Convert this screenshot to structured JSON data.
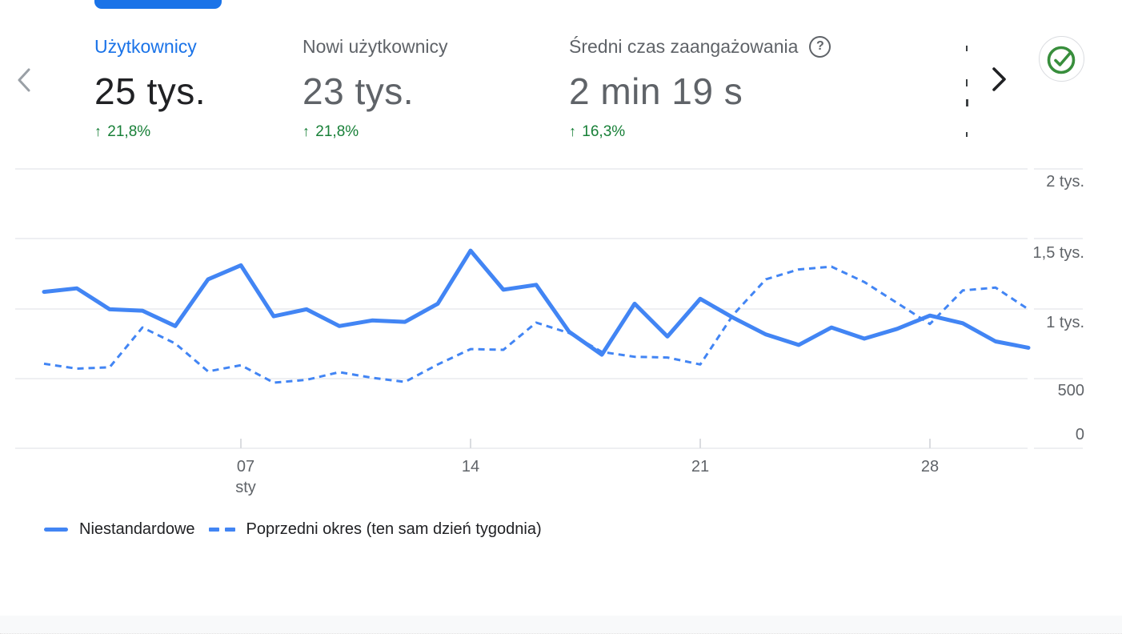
{
  "app": "Google Analytics overview card",
  "colors": {
    "accent_blue": "#1a73e8",
    "line_blue": "#4285f4",
    "positive_green": "#188038",
    "check_green": "#388e3c",
    "text_dark": "#202124",
    "text_gray": "#5f6368",
    "gridline": "#e8eaed"
  },
  "nav": {
    "prev_icon": "chevron-left",
    "next_icon": "chevron-right",
    "check_icon": "check-circle"
  },
  "metrics": [
    {
      "label": "Użytkownicy",
      "value": "25 tys.",
      "change": "21,8%",
      "direction": "up",
      "selected": true
    },
    {
      "label": "Nowi użytkownicy",
      "value": "23 tys.",
      "change": "21,8%",
      "direction": "up",
      "selected": false
    },
    {
      "label": "Średni czas zaangażowania",
      "value": "2 min 19 s",
      "change": "16,3%",
      "direction": "up",
      "selected": false,
      "help_icon": "?"
    }
  ],
  "chart_data": {
    "type": "line",
    "title": "",
    "xlabel": "",
    "ylabel": "",
    "x_unit": "day of January (sty)",
    "x": [
      1,
      2,
      3,
      4,
      5,
      6,
      7,
      8,
      9,
      10,
      11,
      12,
      13,
      14,
      15,
      16,
      17,
      18,
      19,
      20,
      21,
      22,
      23,
      24,
      25,
      26,
      27,
      28,
      29,
      30,
      31
    ],
    "series": [
      {
        "name": "Niestandardowe",
        "style": "solid",
        "values": [
          1120,
          1145,
          995,
          985,
          875,
          1210,
          1310,
          945,
          995,
          875,
          915,
          905,
          1035,
          1415,
          1135,
          1170,
          835,
          670,
          1035,
          800,
          1070,
          935,
          815,
          740,
          865,
          785,
          855,
          950,
          895,
          765,
          720
        ]
      },
      {
        "name": "Poprzedni okres (ten sam dzień tygodnia)",
        "style": "dashed",
        "values": [
          605,
          570,
          580,
          865,
          750,
          550,
          595,
          470,
          490,
          545,
          505,
          475,
          600,
          710,
          705,
          900,
          825,
          690,
          655,
          650,
          600,
          955,
          1210,
          1280,
          1300,
          1190,
          1040,
          890,
          1130,
          1150,
          995
        ]
      }
    ],
    "ylim": [
      0,
      2000
    ],
    "y_ticks": [
      "0",
      "500",
      "1 tys.",
      "1,5 tys.",
      "2 tys."
    ],
    "x_ticks": [
      "07",
      "14",
      "21",
      "28"
    ],
    "x_tick_month": "sty",
    "grid": "horizontal",
    "legend_position": "bottom-left",
    "line_color": "#4285f4"
  },
  "legend": [
    {
      "label": "Niestandardowe",
      "style": "solid"
    },
    {
      "label": "Poprzedni okres (ten sam dzień tygodnia)",
      "style": "dashed"
    }
  ]
}
